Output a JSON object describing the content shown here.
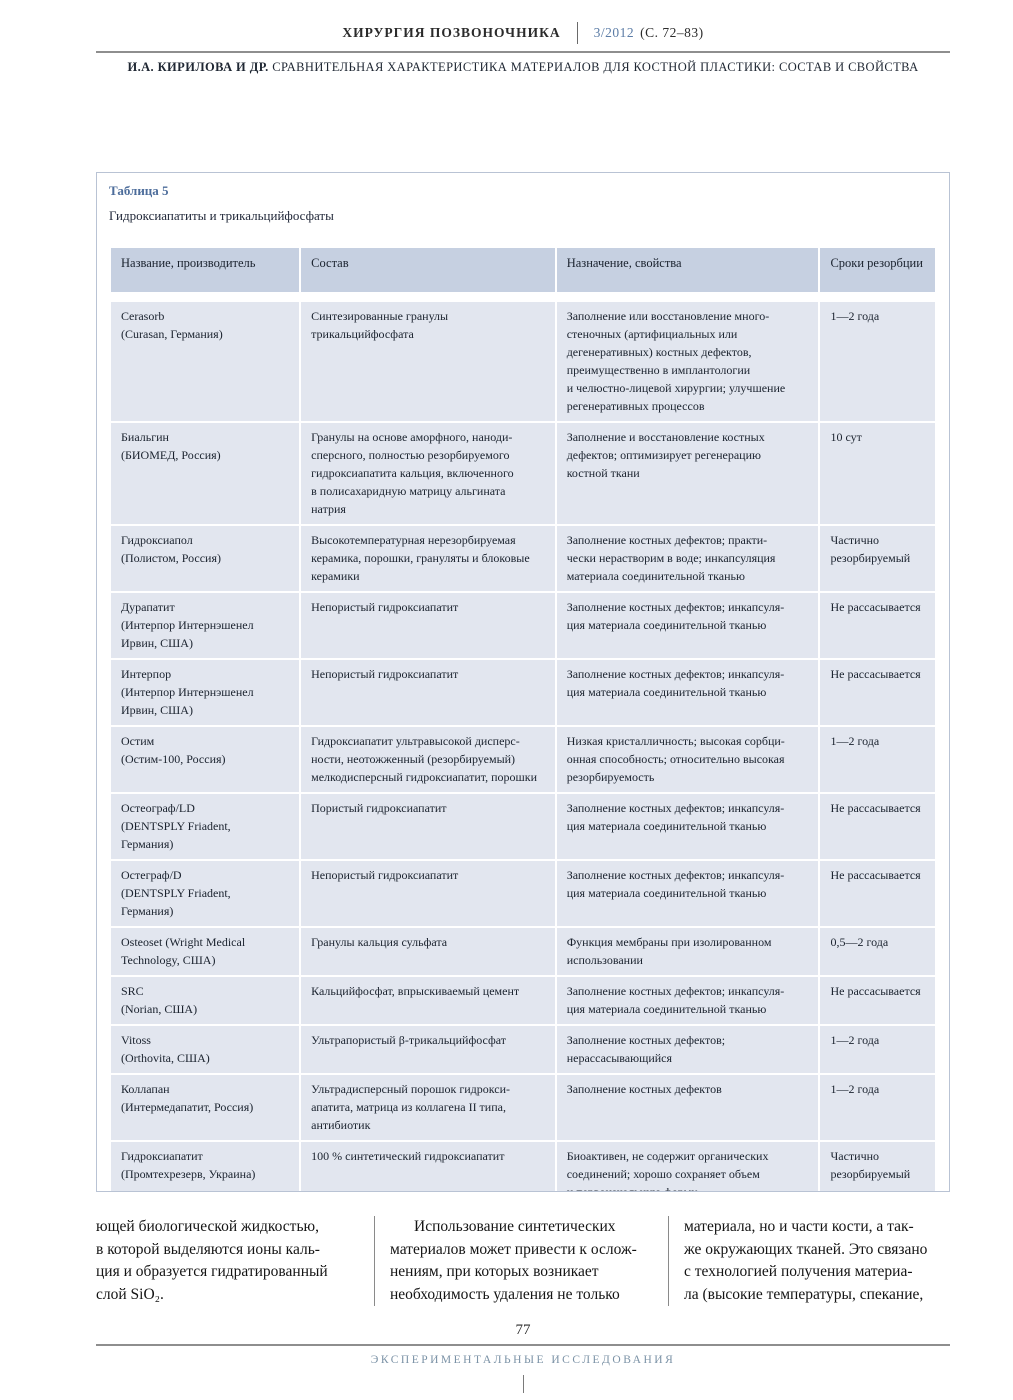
{
  "header": {
    "journal": "ХИРУРГИЯ ПОЗВОНОЧНИКА",
    "issue": "3/2012",
    "pages": "(С. 72–83)",
    "authors": "И.А. КИРИЛОВА И ДР.",
    "article_title": "СРАВНИТЕЛЬНАЯ ХАРАКТЕРИСТИКА МАТЕРИАЛОВ ДЛЯ КОСТНОЙ ПЛАСТИКИ: СОСТАВ И СВОЙСТВА"
  },
  "table": {
    "label": "Таблица 5",
    "title": "Гидроксиапатиты и трикальцийфосфаты",
    "columns": [
      "Название, производитель",
      "Состав",
      "Назначение, свойства",
      "Сроки резорбции"
    ],
    "rows": [
      {
        "name": "Cerasorb\n(Curasan, Германия)",
        "composition": "Синтезированные гранулы\nтрикальцийфосфата",
        "purpose": "Заполнение или восстановление много-\nстеночных (артифициальных или\nдегенеративных) костных дефектов,\nпреимущественно в имплантологии\nи челюстно-лицевой хирургии; улучшение\nрегенеративных процессов",
        "resorption": "1—2 года"
      },
      {
        "name": "Биальгин\n(БИОМЕД, Россия)",
        "composition": "Гранулы на основе аморфного, наноди-\nсперсного, полностью резорбируемого\nгидроксиапатита кальция, включенного\nв полисахаридную матрицу альгината\nнатрия",
        "purpose": "Заполнение и восстановление костных\nдефектов; оптимизирует регенерацию\nкостной ткани",
        "resorption": "10 сут"
      },
      {
        "name": "Гидроксиапол\n(Полистом, Россия)",
        "composition": "Высокотемпературная  нерезорбируемая\nкерамика, порошки, грануляты и блоковые\nкерамики",
        "purpose": "Заполнение костных дефектов; практи-\nчески нерастворим в воде; инкапсуляция\nматериала соединительной тканью",
        "resorption": "Частично\nрезорбируемый"
      },
      {
        "name": "Дурапатит\n(Интерпор Интернэшенел\nИрвин, США)",
        "composition": "Непористый гидроксиапатит",
        "purpose": "Заполнение костных дефектов; инкапсуля-\nция материала соединительной тканью",
        "resorption": "Не рассасывается"
      },
      {
        "name": "Интерпор\n(Интерпор Интернэшенел\nИрвин, США)",
        "composition": "Непористый  гидроксиапатит",
        "purpose": "Заполнение костных дефектов; инкапсуля-\nция материала соединительной тканью",
        "resorption": "Не рассасывается"
      },
      {
        "name": "Остим\n(Остим-100, Россия)",
        "composition": "Гидроксиапатит ультравысокой дисперс-\nности, неотожженный (резорбируемый)\nмелкодисперсный гидроксиапатит, порошки",
        "purpose": "Низкая кристалличность; высокая сорбци-\nонная способность; относительно высокая\nрезорбируемость",
        "resorption": "1—2 года"
      },
      {
        "name": "Остеограф/LD\n(DENTSPLY Friadent,\nГермания)",
        "composition": "Пористый гидроксиапатит",
        "purpose": "Заполнение костных дефектов; инкапсуля-\nция материала соединительной тканью",
        "resorption": "Не рассасывается"
      },
      {
        "name": "Остеграф/D\n(DENTSPLY Friadent,\nГермания)",
        "composition": "Непористый гидроксиапатит",
        "purpose": "Заполнение костных дефектов; инкапсуля-\nция материала соединительной тканью",
        "resorption": "Не рассасывается"
      },
      {
        "name": "Osteoset (Wright Medical\nTechnology, США)",
        "composition": "Гранулы кальция сульфата",
        "purpose": "Функция мембраны при изолированном\nиспользовании",
        "resorption": "0,5—2 года"
      },
      {
        "name": "SRC\n(Norian, США)",
        "composition": "Кальцийфосфат, впрыскиваемый цемент",
        "purpose": "Заполнение костных дефектов; инкапсуля-\nция материала соединительной тканью",
        "resorption": "Не рассасывается"
      },
      {
        "name": "Vitoss\n(Orthovita, США)",
        "composition": "Ультрапористый β-трикальцийфосфат",
        "purpose": "Заполнение костных дефектов;\nнерассасывающийся",
        "resorption": "1—2 года"
      },
      {
        "name": "Коллапан\n(Интермедапатит, Россия)",
        "composition": "Ультрадисперсный порошок  гидрокси-\nапатита, матрица из коллагена II типа,\nантибиотик",
        "purpose": "Заполнение костных дефектов",
        "resorption": "1—2 года"
      },
      {
        "name": "Гидроксиапатит\n(Промтехрезерв, Украина)",
        "composition": "100 % синтетический гидроксиапатит",
        "purpose": "Биоактивен, не содержит органических\nсоединений; хорошо сохраняет объем\nи первоначальную форму",
        "resorption": "Частично\nрезорбируемый"
      }
    ]
  },
  "body_text": {
    "col1": "ющей биологической жидкостью,\nв которой выделяются ионы каль-\nция и образуется гидратированный\nслой SiO₂.",
    "col2": "Использование синтетических\nматериалов может привести к ослож-\nнениям, при которых возникает\nнеобходимость удаления не только",
    "col3": "материала, но и части кости, а так-\nже окружающих тканей. Это связано\nс технологией получения материа-\nла (высокие температуры, спекание,"
  },
  "footer": {
    "page_number": "77",
    "section": "ЭКСПЕРИМЕНТАЛЬНЫЕ ИССЛЕДОВАНИЯ"
  },
  "colors": {
    "accent_blue": "#5b7ca6",
    "table_label_blue": "#4d6d9b",
    "table_header_bg": "#c6d0e1",
    "table_row_bg": "#e2e6ef",
    "footer_label": "#7b92a6"
  }
}
